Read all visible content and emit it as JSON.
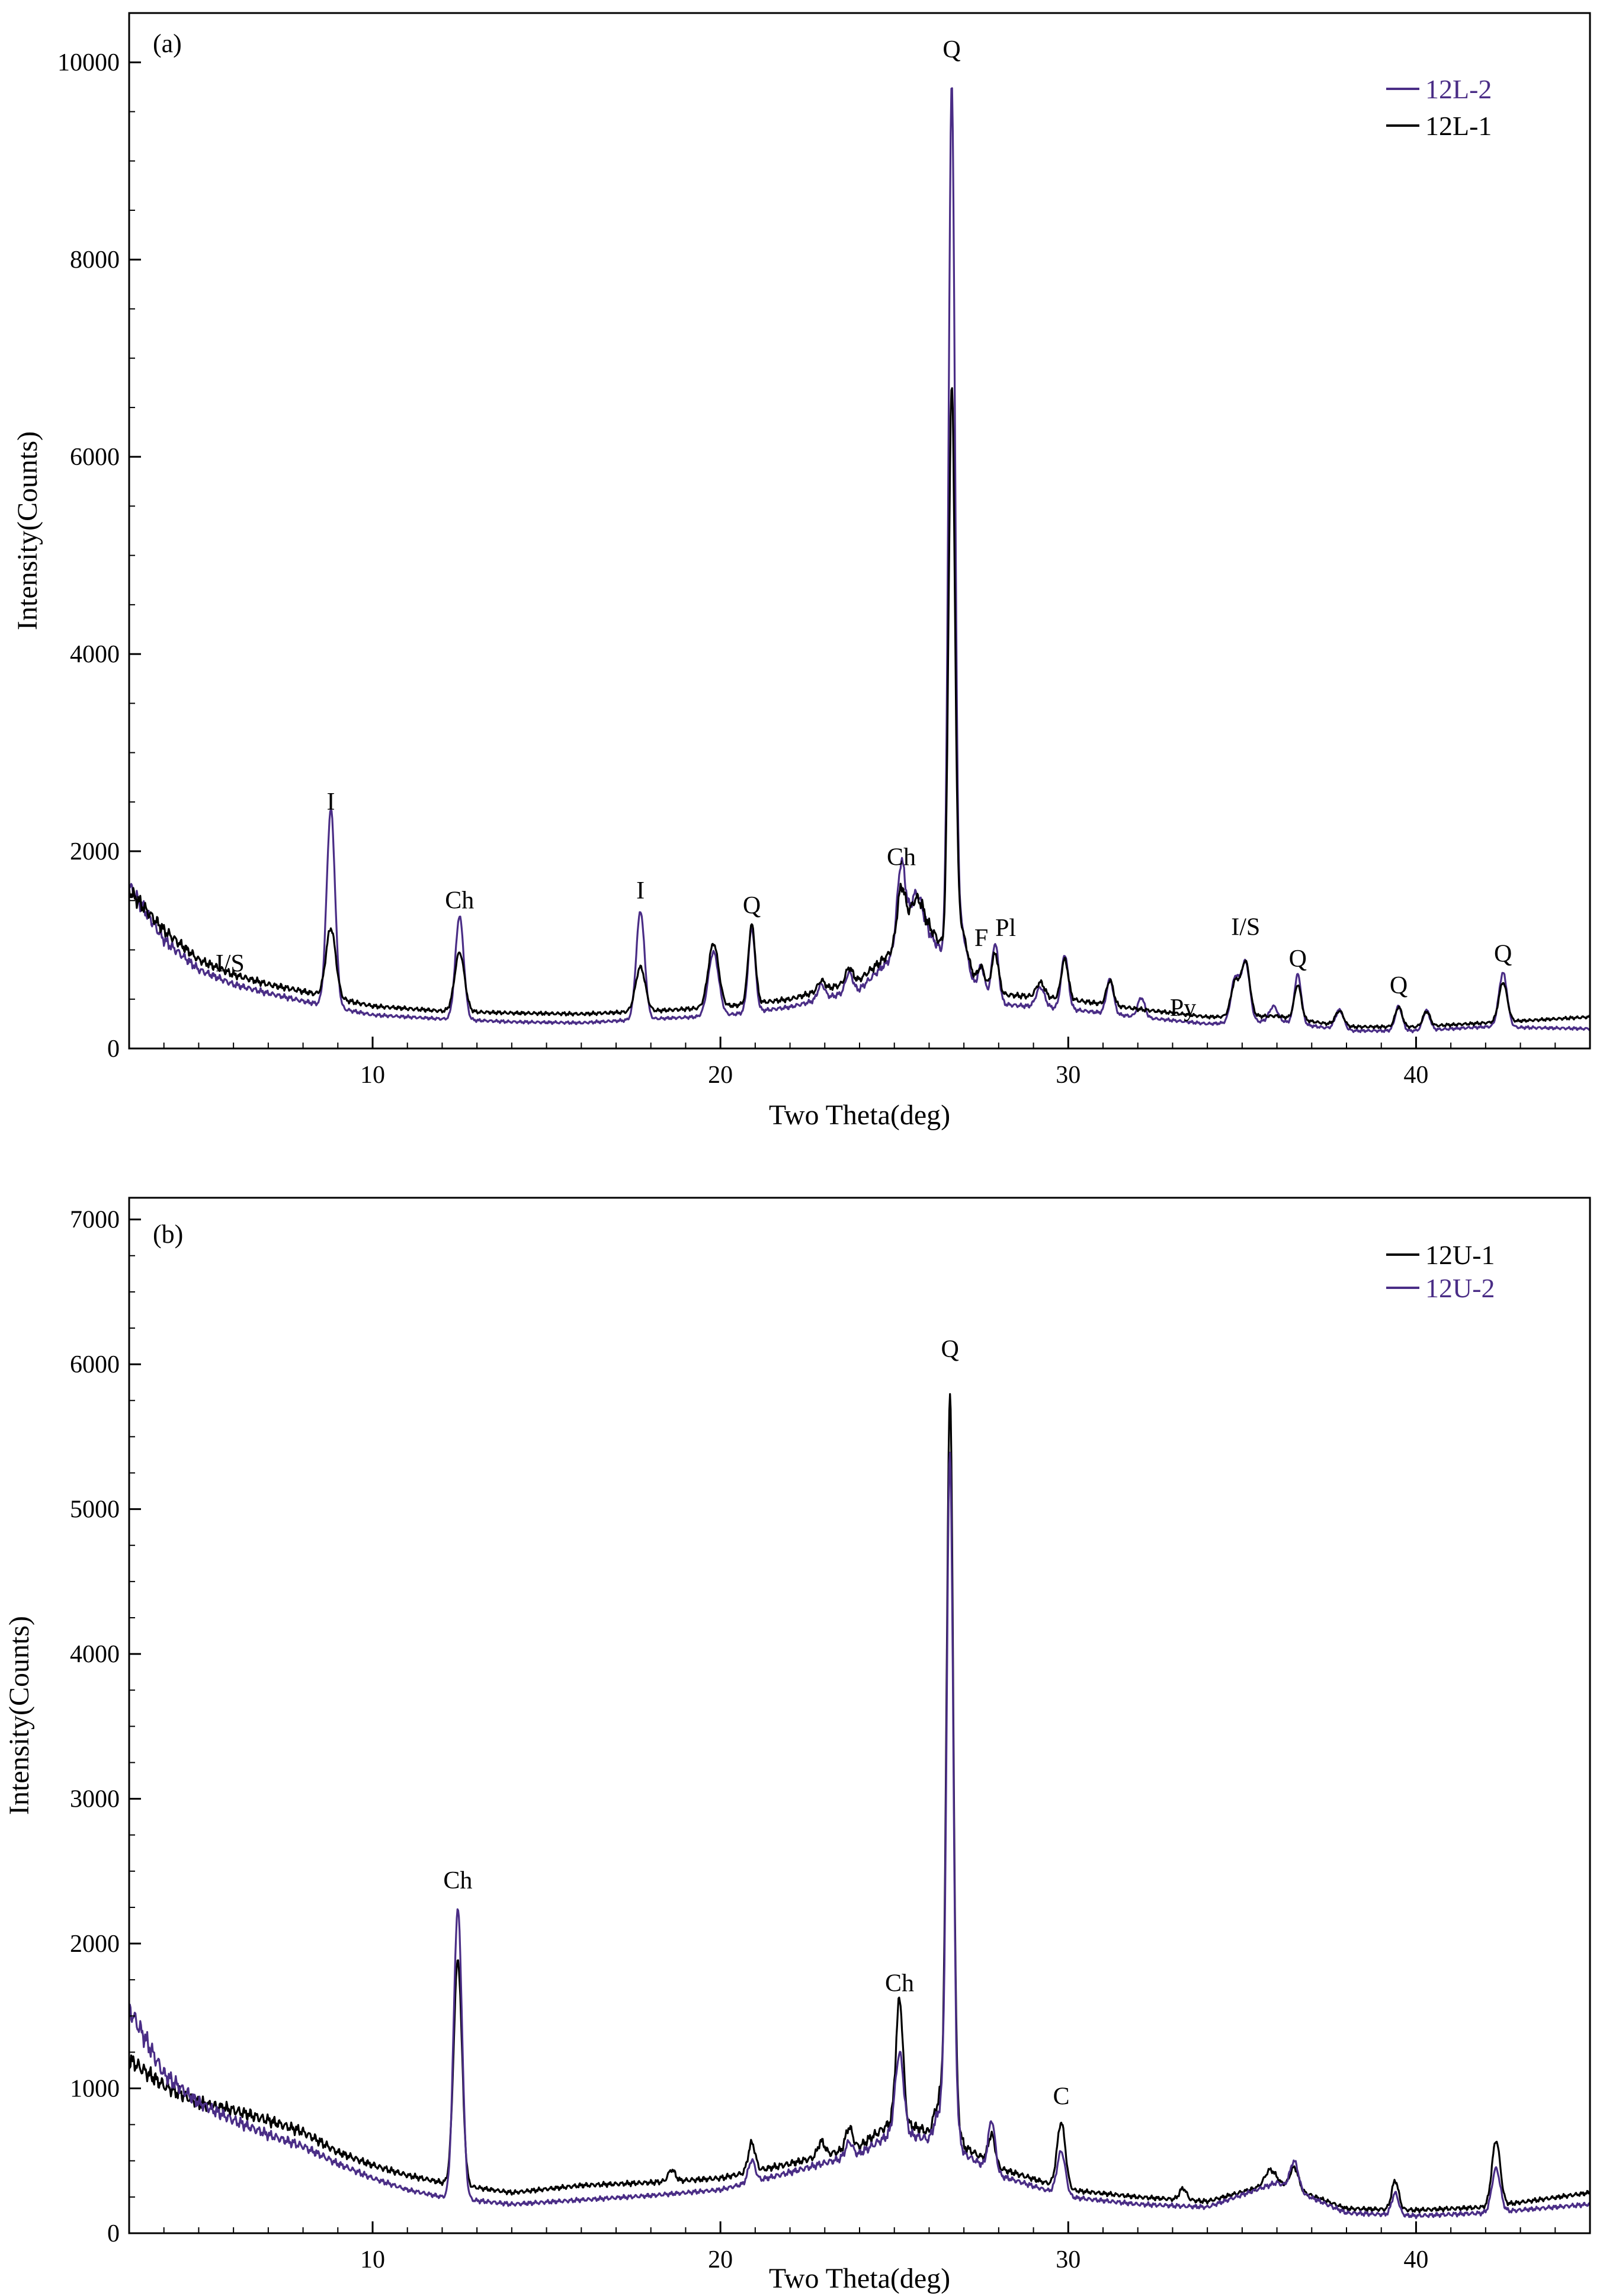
{
  "chart_data": [
    {
      "type": "line",
      "panel": "(a)",
      "xlabel": "Two Theta(deg)",
      "ylabel": "Intensity(Counts)",
      "xlim": [
        3,
        45
      ],
      "ylim": [
        0,
        10500
      ],
      "xticks": [
        10,
        20,
        30,
        40
      ],
      "yticks": [
        0,
        2000,
        4000,
        6000,
        8000,
        10000
      ],
      "legend": [
        {
          "name": "12L-2",
          "color": "#4a2d86"
        },
        {
          "name": "12L-1",
          "color": "#000000"
        }
      ],
      "series": [
        {
          "name": "12L-2",
          "color": "#4a2d86",
          "background": [
            [
              3,
              1650
            ],
            [
              4,
              1100
            ],
            [
              5,
              800
            ],
            [
              6,
              650
            ],
            [
              7,
              560
            ],
            [
              8,
              480
            ],
            [
              10,
              340
            ],
            [
              12,
              300
            ],
            [
              14,
              270
            ],
            [
              16,
              260
            ],
            [
              18,
              300
            ],
            [
              20,
              330
            ],
            [
              22,
              420
            ],
            [
              24,
              600
            ],
            [
              25,
              950
            ],
            [
              25.8,
              1300
            ],
            [
              27,
              600
            ],
            [
              28,
              450
            ],
            [
              30,
              400
            ],
            [
              32,
              320
            ],
            [
              34,
              250
            ],
            [
              36,
              280
            ],
            [
              38,
              180
            ],
            [
              40,
              180
            ],
            [
              42,
              220
            ],
            [
              45,
              200
            ]
          ],
          "peaks": [
            [
              8.8,
              2000,
              0.12
            ],
            [
              12.5,
              1050,
              0.12
            ],
            [
              17.7,
              1100,
              0.12
            ],
            [
              19.8,
              650,
              0.15
            ],
            [
              20.9,
              850,
              0.1
            ],
            [
              22.9,
              150,
              0.1
            ],
            [
              23.7,
              200,
              0.1
            ],
            [
              25.2,
              850,
              0.12
            ],
            [
              25.6,
              350,
              0.15
            ],
            [
              26.65,
              8700,
              0.09
            ],
            [
              26.9,
              600,
              0.2
            ],
            [
              27.5,
              300,
              0.1
            ],
            [
              27.9,
              600,
              0.1
            ],
            [
              29.2,
              200,
              0.12
            ],
            [
              29.9,
              550,
              0.1
            ],
            [
              31.2,
              350,
              0.1
            ],
            [
              32.1,
              200,
              0.1
            ],
            [
              34.8,
              450,
              0.12
            ],
            [
              35.1,
              600,
              0.12
            ],
            [
              35.9,
              150,
              0.12
            ],
            [
              36.6,
              500,
              0.1
            ],
            [
              37.8,
              200,
              0.12
            ],
            [
              39.5,
              250,
              0.1
            ],
            [
              40.3,
              200,
              0.1
            ],
            [
              42.5,
              550,
              0.12
            ]
          ]
        },
        {
          "name": "12L-1",
          "color": "#000000",
          "background": [
            [
              3,
              1600
            ],
            [
              4,
              1200
            ],
            [
              5,
              900
            ],
            [
              6,
              750
            ],
            [
              7,
              650
            ],
            [
              8,
              580
            ],
            [
              10,
              430
            ],
            [
              12,
              380
            ],
            [
              14,
              360
            ],
            [
              16,
              350
            ],
            [
              18,
              380
            ],
            [
              20,
              420
            ],
            [
              22,
              500
            ],
            [
              24,
              700
            ],
            [
              25,
              1000
            ],
            [
              25.8,
              1350
            ],
            [
              27,
              700
            ],
            [
              28,
              550
            ],
            [
              30,
              500
            ],
            [
              32,
              400
            ],
            [
              34,
              320
            ],
            [
              36,
              330
            ],
            [
              38,
              220
            ],
            [
              40,
              220
            ],
            [
              42,
              260
            ],
            [
              45,
              320
            ]
          ],
          "peaks": [
            [
              8.8,
              700,
              0.14
            ],
            [
              12.5,
              600,
              0.14
            ],
            [
              17.7,
              450,
              0.14
            ],
            [
              19.8,
              650,
              0.15
            ],
            [
              20.9,
              800,
              0.1
            ],
            [
              22.9,
              100,
              0.1
            ],
            [
              23.7,
              150,
              0.1
            ],
            [
              25.2,
              550,
              0.12
            ],
            [
              25.6,
              250,
              0.15
            ],
            [
              26.65,
              5600,
              0.09
            ],
            [
              26.9,
              500,
              0.2
            ],
            [
              27.5,
              200,
              0.1
            ],
            [
              27.9,
              400,
              0.1
            ],
            [
              29.2,
              150,
              0.12
            ],
            [
              29.9,
              400,
              0.1
            ],
            [
              31.2,
              250,
              0.1
            ],
            [
              34.8,
              350,
              0.12
            ],
            [
              35.1,
              550,
              0.12
            ],
            [
              36.6,
              350,
              0.1
            ],
            [
              37.8,
              150,
              0.12
            ],
            [
              39.5,
              200,
              0.1
            ],
            [
              40.3,
              150,
              0.1
            ],
            [
              42.5,
              400,
              0.12
            ]
          ]
        }
      ],
      "annotations": [
        {
          "text": "I/S",
          "x": 5.9,
          "y": 780
        },
        {
          "text": "I",
          "x": 8.8,
          "y": 2420
        },
        {
          "text": "Ch",
          "x": 12.5,
          "y": 1420
        },
        {
          "text": "I",
          "x": 17.7,
          "y": 1520
        },
        {
          "text": "Q",
          "x": 20.9,
          "y": 1370
        },
        {
          "text": "Ch",
          "x": 25.2,
          "y": 1860
        },
        {
          "text": "Q",
          "x": 26.65,
          "y": 10050
        },
        {
          "text": "F",
          "x": 27.5,
          "y": 1040
        },
        {
          "text": "Pl",
          "x": 28.2,
          "y": 1140
        },
        {
          "text": "Py",
          "x": 33.3,
          "y": 330
        },
        {
          "text": "I/S",
          "x": 35.1,
          "y": 1150
        },
        {
          "text": "Q",
          "x": 36.6,
          "y": 830
        },
        {
          "text": "Q",
          "x": 39.5,
          "y": 560
        },
        {
          "text": "Q",
          "x": 42.5,
          "y": 880
        }
      ]
    },
    {
      "type": "line",
      "panel": "(b)",
      "xlabel": "Two Theta(deg)",
      "ylabel": "Intensity(Counts)",
      "xlim": [
        3,
        45
      ],
      "ylim": [
        0,
        7150
      ],
      "xticks": [
        10,
        20,
        30,
        40
      ],
      "yticks": [
        0,
        1000,
        2000,
        3000,
        4000,
        5000,
        6000,
        7000
      ],
      "legend": [
        {
          "name": "12U-1",
          "color": "#000000"
        },
        {
          "name": "12U-2",
          "color": "#4a2d86"
        }
      ],
      "series": [
        {
          "name": "12U-1",
          "color": "#000000",
          "background": [
            [
              3,
              1200
            ],
            [
              4,
              1020
            ],
            [
              5,
              900
            ],
            [
              6,
              850
            ],
            [
              7,
              780
            ],
            [
              8,
              700
            ],
            [
              9,
              560
            ],
            [
              10,
              470
            ],
            [
              11,
              400
            ],
            [
              12,
              350
            ],
            [
              14,
              280
            ],
            [
              16,
              330
            ],
            [
              18,
              350
            ],
            [
              20,
              380
            ],
            [
              22,
              480
            ],
            [
              24,
              600
            ],
            [
              25,
              780
            ],
            [
              26,
              700
            ],
            [
              26.5,
              1100
            ],
            [
              27,
              600
            ],
            [
              28,
              450
            ],
            [
              30,
              300
            ],
            [
              32,
              250
            ],
            [
              34,
              220
            ],
            [
              36,
              350
            ],
            [
              38,
              170
            ],
            [
              40,
              160
            ],
            [
              42,
              180
            ],
            [
              45,
              280
            ]
          ],
          "peaks": [
            [
              12.45,
              1550,
              0.12
            ],
            [
              18.6,
              80,
              0.1
            ],
            [
              20.9,
              200,
              0.1
            ],
            [
              22.9,
              100,
              0.1
            ],
            [
              23.7,
              150,
              0.1
            ],
            [
              25.15,
              850,
              0.1
            ],
            [
              26.6,
              4800,
              0.09
            ],
            [
              27.8,
              200,
              0.1
            ],
            [
              29.8,
              450,
              0.12
            ],
            [
              33.3,
              80,
              0.1
            ],
            [
              35.8,
              100,
              0.15
            ],
            [
              36.5,
              150,
              0.12
            ],
            [
              39.4,
              200,
              0.1
            ],
            [
              42.3,
              450,
              0.12
            ]
          ]
        },
        {
          "name": "12U-2",
          "color": "#4a2d86",
          "background": [
            [
              3,
              1550
            ],
            [
              4,
              1100
            ],
            [
              5,
              900
            ],
            [
              6,
              780
            ],
            [
              7,
              680
            ],
            [
              8,
              600
            ],
            [
              9,
              480
            ],
            [
              10,
              380
            ],
            [
              11,
              300
            ],
            [
              12,
              250
            ],
            [
              14,
              200
            ],
            [
              16,
              230
            ],
            [
              18,
              260
            ],
            [
              20,
              300
            ],
            [
              22,
              420
            ],
            [
              24,
              550
            ],
            [
              25,
              700
            ],
            [
              26,
              650
            ],
            [
              26.5,
              1000
            ],
            [
              27,
              550
            ],
            [
              28,
              400
            ],
            [
              30,
              250
            ],
            [
              32,
              200
            ],
            [
              34,
              180
            ],
            [
              36,
              350
            ],
            [
              38,
              140
            ],
            [
              40,
              120
            ],
            [
              42,
              140
            ],
            [
              45,
              200
            ]
          ],
          "peaks": [
            [
              12.45,
              2000,
              0.12
            ],
            [
              20.9,
              150,
              0.1
            ],
            [
              23.7,
              100,
              0.1
            ],
            [
              25.15,
              550,
              0.12
            ],
            [
              26.6,
              4500,
              0.09
            ],
            [
              27.8,
              350,
              0.1
            ],
            [
              29.8,
              300,
              0.12
            ],
            [
              36.5,
              200,
              0.12
            ],
            [
              39.4,
              150,
              0.1
            ],
            [
              42.3,
              300,
              0.12
            ]
          ]
        }
      ],
      "annotations": [
        {
          "text": "Ch",
          "x": 12.45,
          "y": 2380
        },
        {
          "text": "Ch",
          "x": 25.15,
          "y": 1670
        },
        {
          "text": "Q",
          "x": 26.6,
          "y": 6050
        },
        {
          "text": "C",
          "x": 29.8,
          "y": 890
        }
      ]
    }
  ]
}
